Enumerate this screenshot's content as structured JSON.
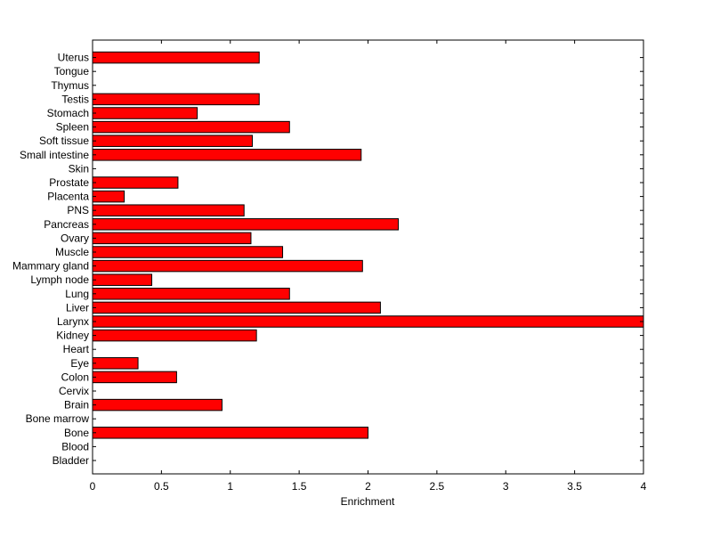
{
  "chart_data": {
    "type": "bar",
    "orientation": "horizontal",
    "title": "",
    "xlabel": "Enrichment",
    "ylabel": "",
    "xlim": [
      0,
      4
    ],
    "x_ticks": [
      0,
      0.5,
      1,
      1.5,
      2,
      2.5,
      3,
      3.5,
      4
    ],
    "x_tick_labels": [
      "0",
      "0.5",
      "1",
      "1.5",
      "2",
      "2.5",
      "3",
      "3.5",
      "4"
    ],
    "grid": false,
    "bar_color": "#ff0000",
    "bar_edge_color": "#000000",
    "categories": [
      "Bladder",
      "Blood",
      "Bone",
      "Bone marrow",
      "Brain",
      "Cervix",
      "Colon",
      "Eye",
      "Heart",
      "Kidney",
      "Larynx",
      "Liver",
      "Lung",
      "Lymph node",
      "Mammary gland",
      "Muscle",
      "Ovary",
      "Pancreas",
      "PNS",
      "Placenta",
      "Prostate",
      "Skin",
      "Small intestine",
      "Soft tissue",
      "Spleen",
      "Stomach",
      "Testis",
      "Thymus",
      "Tongue",
      "Uterus"
    ],
    "values": [
      0,
      0,
      2.0,
      0,
      0.94,
      0,
      0.61,
      0.33,
      0,
      1.19,
      4.0,
      2.09,
      1.43,
      0.43,
      1.96,
      1.38,
      1.15,
      2.22,
      1.1,
      0.23,
      0.62,
      0,
      1.95,
      1.16,
      1.43,
      0.76,
      1.21,
      0,
      0,
      1.21
    ]
  }
}
